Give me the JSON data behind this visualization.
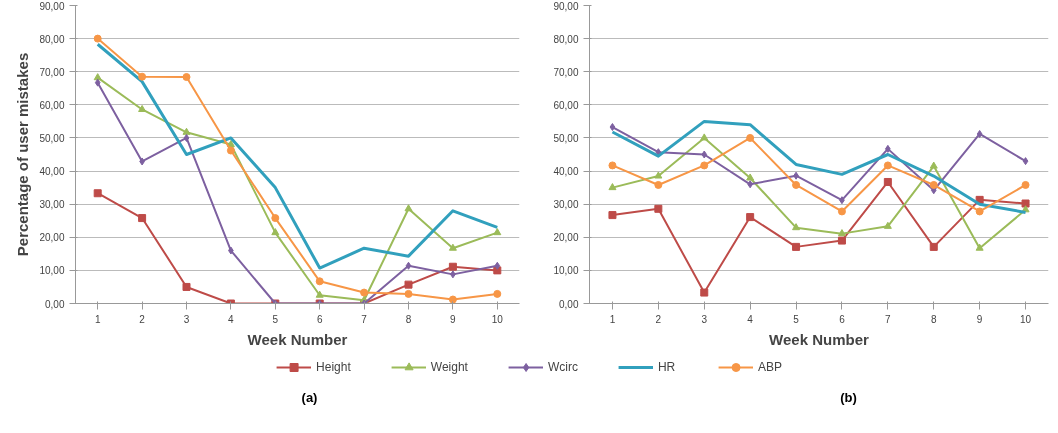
{
  "chart_data": [
    {
      "type": "line",
      "ylabel": "Percentage of user mistakes",
      "xlabel": "Week Number",
      "annotations": [
        "(a)"
      ],
      "categories": [
        "1",
        "2",
        "3",
        "4",
        "5",
        "6",
        "7",
        "8",
        "9",
        "10"
      ],
      "ylim": [
        0,
        90
      ],
      "yticks": [
        {
          "value": 0,
          "label": "0,00"
        },
        {
          "value": 10,
          "label": "10,00"
        },
        {
          "value": 20,
          "label": "20,00"
        },
        {
          "value": 30,
          "label": "30,00"
        },
        {
          "value": 40,
          "label": "40,00"
        },
        {
          "value": 50,
          "label": "50,00"
        },
        {
          "value": 60,
          "label": "60,00"
        },
        {
          "value": 70,
          "label": "70,00"
        },
        {
          "value": 80,
          "label": "80,00"
        },
        {
          "value": 90,
          "label": "90,00"
        }
      ],
      "grid": "y",
      "legend": "bottom",
      "series": [
        {
          "name": "Height",
          "color": "#be4b48",
          "marker": "square",
          "values": [
            33.3,
            25.8,
            5.0,
            0,
            0,
            0,
            0,
            5.7,
            11.1,
            10.0
          ]
        },
        {
          "name": "Weight",
          "color": "#9bbb59",
          "marker": "triangle",
          "values": [
            68.2,
            58.6,
            51.7,
            48.0,
            21.4,
            2.5,
            1.0,
            28.6,
            16.7,
            21.4
          ]
        },
        {
          "name": "Wcirc",
          "color": "#7d60a0",
          "marker": "diamond",
          "values": [
            66.7,
            42.9,
            50.0,
            16.0,
            0,
            0,
            0,
            11.4,
            8.8,
            11.4
          ]
        },
        {
          "name": "HR",
          "color": "#31a0bd",
          "marker": "none",
          "values": [
            78.3,
            67.0,
            45.0,
            50.0,
            35.0,
            10.7,
            16.7,
            14.3,
            28.0,
            23.0
          ]
        },
        {
          "name": "ABP",
          "color": "#f79646",
          "marker": "circle",
          "values": [
            80.0,
            68.5,
            68.4,
            46.2,
            25.8,
            6.7,
            3.3,
            2.9,
            1.2,
            2.9
          ]
        }
      ]
    },
    {
      "type": "line",
      "xlabel": "Week Number",
      "annotations": [
        "(b)"
      ],
      "categories": [
        "1",
        "2",
        "3",
        "4",
        "5",
        "6",
        "7",
        "8",
        "9",
        "10"
      ],
      "ylim": [
        0,
        90
      ],
      "yticks": [
        {
          "value": 0,
          "label": "0,00"
        },
        {
          "value": 10,
          "label": "10,00"
        },
        {
          "value": 20,
          "label": "20,00"
        },
        {
          "value": 30,
          "label": "30,00"
        },
        {
          "value": 40,
          "label": "40,00"
        },
        {
          "value": 50,
          "label": "50,00"
        },
        {
          "value": 60,
          "label": "60,00"
        },
        {
          "value": 70,
          "label": "70,00"
        },
        {
          "value": 80,
          "label": "80,00"
        },
        {
          "value": 90,
          "label": "90,00"
        }
      ],
      "grid": "y",
      "series": [
        {
          "color": "#be4b48",
          "marker": "square",
          "values": [
            26.7,
            28.6,
            3.3,
            26.1,
            17.1,
            19.0,
            36.7,
            17.1,
            31.3,
            30.2
          ]
        },
        {
          "color": "#9bbb59",
          "marker": "triangle",
          "values": [
            35.0,
            38.5,
            50.0,
            37.9,
            22.9,
            21.1,
            23.3,
            41.5,
            16.7,
            28.3
          ]
        },
        {
          "color": "#7d60a0",
          "marker": "diamond",
          "values": [
            53.3,
            45.7,
            45.0,
            36.0,
            38.6,
            31.2,
            46.7,
            34.2,
            51.2,
            43.0
          ]
        },
        {
          "color": "#31a0bd",
          "marker": "none",
          "values": [
            51.8,
            44.5,
            55.0,
            54.0,
            42.0,
            39.0,
            45.0,
            38.5,
            30.0,
            27.5
          ]
        },
        {
          "color": "#f79646",
          "marker": "circle",
          "values": [
            41.7,
            35.8,
            41.7,
            50.0,
            35.8,
            27.8,
            41.7,
            35.8,
            27.8,
            35.8
          ]
        }
      ]
    }
  ]
}
